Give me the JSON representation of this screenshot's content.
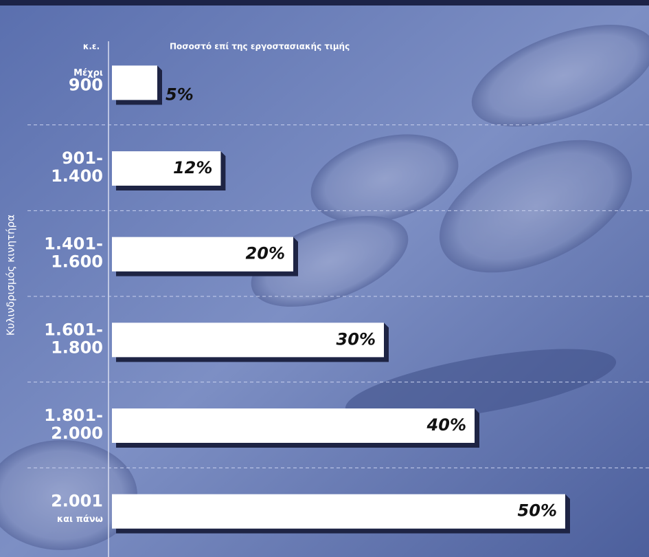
{
  "chart_data": {
    "type": "bar",
    "orientation": "horizontal",
    "category_header": "κ.ε.",
    "title": "Ποσοστό επί της εργοστασιακής τιμής",
    "y_label": "Κυλινδρισμός κινητήρα",
    "categories": [
      [
        "Μέχρι",
        "900"
      ],
      [
        "901-",
        "1.400"
      ],
      [
        "1.401-",
        "1.600"
      ],
      [
        "1.601-",
        "1.800"
      ],
      [
        "1.801-",
        "2.000"
      ],
      [
        "2.001",
        "και πάνω"
      ]
    ],
    "values": [
      5,
      12,
      20,
      30,
      40,
      50
    ],
    "value_labels": [
      "5%",
      "12%",
      "20%",
      "30%",
      "40%",
      "50%"
    ],
    "color": "#ffffff",
    "xlim": [
      0,
      50
    ]
  }
}
